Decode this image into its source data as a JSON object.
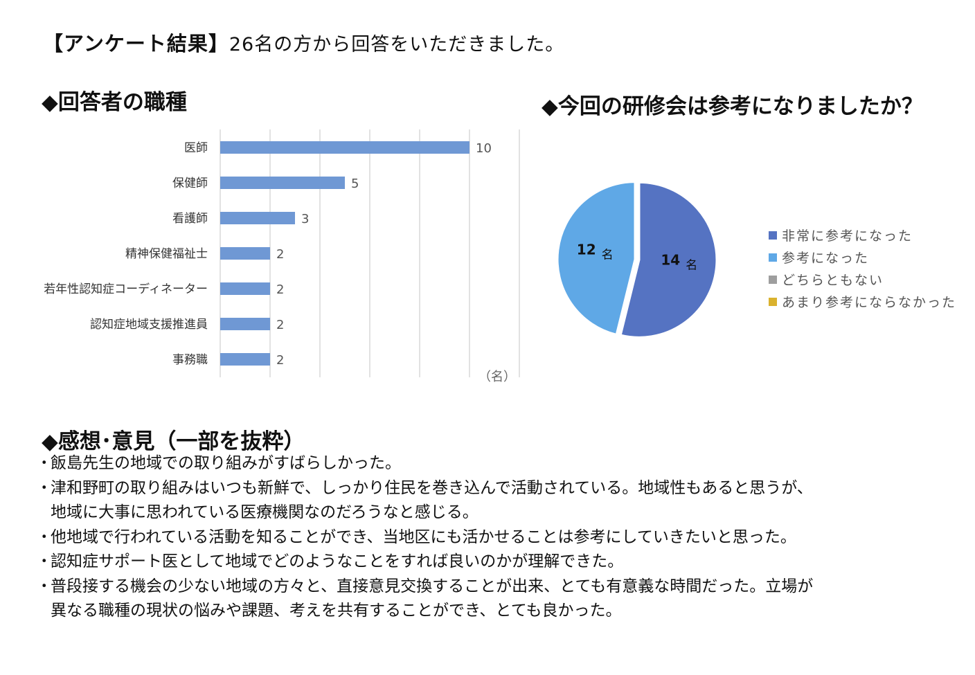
{
  "page": {
    "title_main": "【アンケート結果】",
    "title_sub": "26名の方から回答をいただきました。"
  },
  "bar_section": {
    "heading": "◆回答者の職種"
  },
  "pie_section": {
    "heading": "◆今回の研修会は参考になりましたか？"
  },
  "chart_data": [
    {
      "type": "bar",
      "orientation": "horizontal",
      "categories": [
        "医師",
        "保健師",
        "看護師",
        "精神保健福祉士",
        "若年性認知症コーディネーター",
        "認知症地域支援推進員",
        "事務職"
      ],
      "values": [
        10,
        5,
        3,
        2,
        2,
        2,
        2
      ],
      "xlabel": "（名）",
      "xlim": [
        0,
        12
      ],
      "grid": true,
      "bar_color": "#6f98d4",
      "data_labels": true
    },
    {
      "type": "pie",
      "labels": [
        "非常に参考になった",
        "参考になった",
        "どちらともない",
        "あまり参考にならなかった"
      ],
      "values": [
        14,
        12,
        0,
        0
      ],
      "colors": [
        "#5573c2",
        "#5fa8e6",
        "#9e9e9e",
        "#dab22e"
      ],
      "slice_label_unit": "名",
      "legend_position": "right"
    }
  ],
  "comments": {
    "heading": "◆感想･意見（一部を抜粋）",
    "bullet": "･",
    "items": [
      [
        "飯島先生の地域での取り組みがすばらしかった。"
      ],
      [
        "津和野町の取り組みはいつも新鮮で、しっかり住民を巻き込んで活動されている。地域性もあると思うが、",
        "地域に大事に思われている医療機関なのだろうなと感じる。"
      ],
      [
        "他地域で行われている活動を知ることができ、当地区にも活かせることは参考にしていきたいと思った。"
      ],
      [
        "認知症サポート医として地域でどのようなことをすれば良いのかが理解できた。"
      ],
      [
        "普段接する機会の少ない地域の方々と、直接意見交換することが出来、とても有意義な時間だった。立場が",
        "異なる職種の現状の悩みや課題、考えを共有することができ、とても良かった。"
      ]
    ]
  }
}
